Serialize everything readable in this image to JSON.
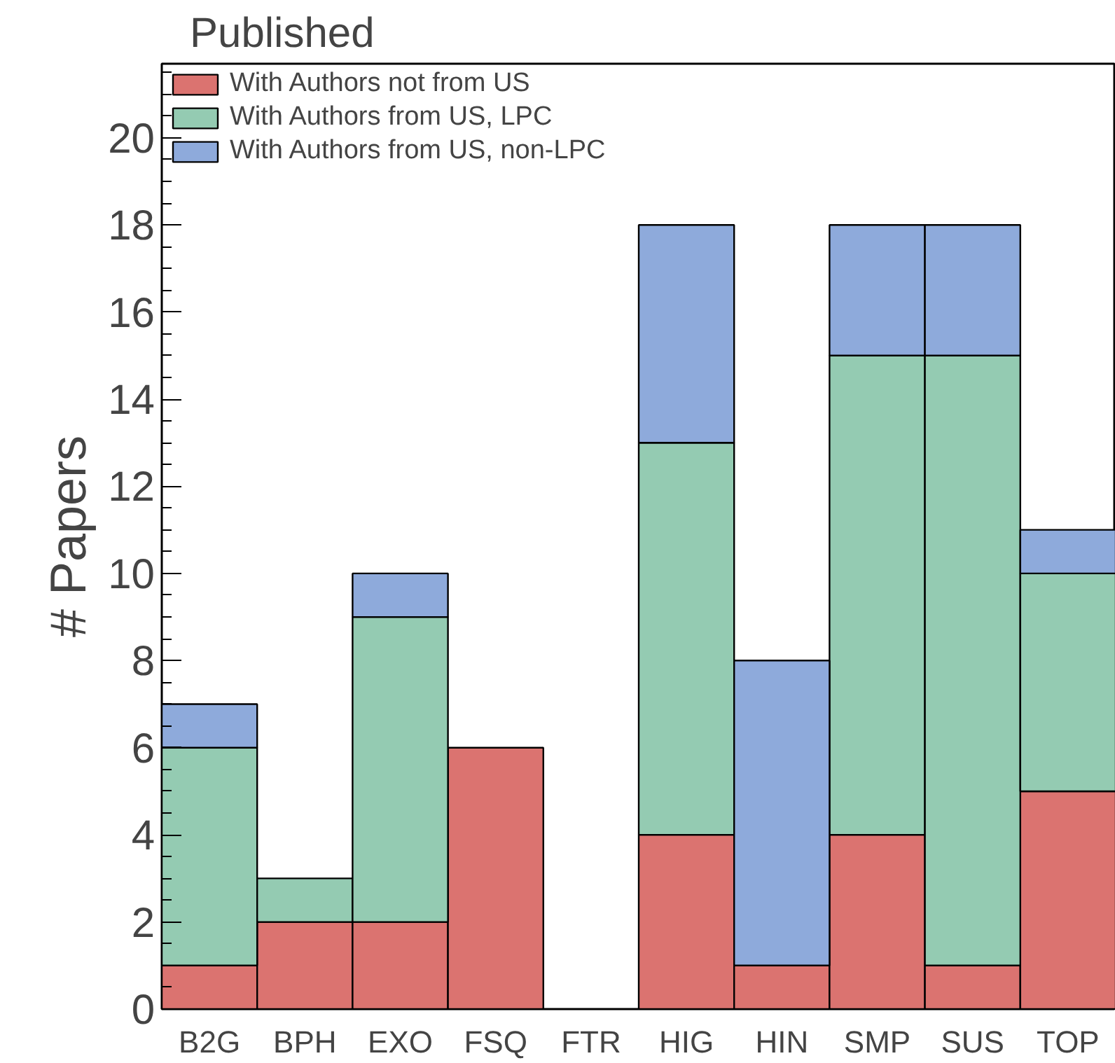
{
  "chart_data": {
    "type": "bar",
    "title": "Published",
    "ylabel": "# Papers",
    "stacked": true,
    "categories": [
      "B2G",
      "BPH",
      "EXO",
      "FSQ",
      "FTR",
      "HIG",
      "HIN",
      "SMP",
      "SUS",
      "TOP"
    ],
    "series": [
      {
        "name": "With Authors not from US",
        "color": "#db7370",
        "values": [
          1,
          2,
          2,
          6,
          0,
          4,
          1,
          4,
          1,
          5
        ]
      },
      {
        "name": "With Authors from US, LPC",
        "color": "#94cbb2",
        "values": [
          5,
          1,
          7,
          0,
          0,
          9,
          0,
          11,
          14,
          5
        ]
      },
      {
        "name": "With Authors from US, non-LPC",
        "color": "#8eaadb",
        "values": [
          1,
          0,
          1,
          0,
          0,
          5,
          7,
          3,
          3,
          1
        ]
      }
    ],
    "ylim": [
      0,
      21.7
    ],
    "yticks": [
      0,
      2,
      4,
      6,
      8,
      10,
      12,
      14,
      16,
      18,
      20
    ],
    "grid": false,
    "legend": "top left"
  }
}
